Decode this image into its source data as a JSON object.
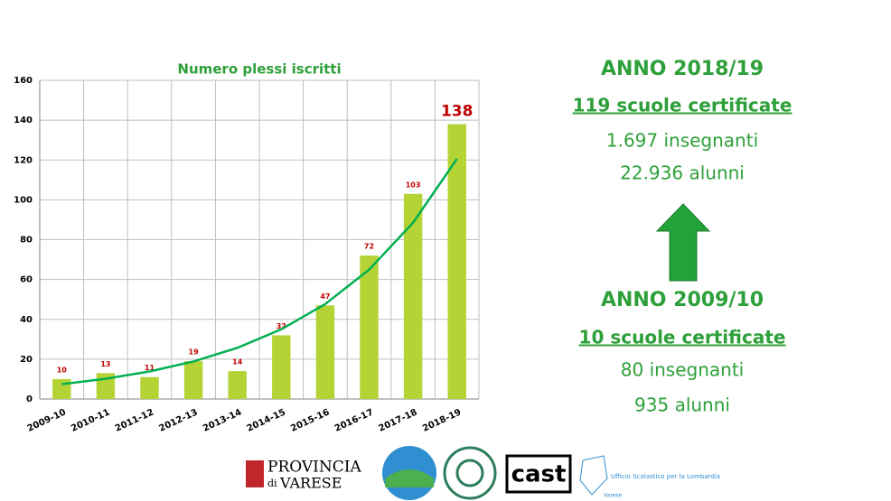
{
  "chart_data": {
    "type": "bar",
    "title": "Numero plessi iscritti",
    "categories": [
      "2009-10",
      "2010-11",
      "2011-12",
      "2012-13",
      "2013-14",
      "2014-15",
      "2015-16",
      "2016-17",
      "2017-18",
      "2018-19"
    ],
    "values": [
      10,
      13,
      11,
      19,
      14,
      32,
      47,
      72,
      103,
      138
    ],
    "color": "#b4d335",
    "label_color": "#c00000",
    "ylim": [
      0,
      160
    ],
    "yticks": [
      0,
      20,
      40,
      60,
      80,
      100,
      120,
      140,
      160
    ],
    "grid": true,
    "trendline": {
      "type": "exponential",
      "color": "#00b050"
    }
  },
  "summary": {
    "current": {
      "heading": "ANNO 2018/19",
      "schools": "119 scuole certificate",
      "teachers": "1.697 insegnanti",
      "students": "22.936 alunni"
    },
    "past": {
      "heading": "ANNO 2009/10",
      "schools": "10 scuole certificate",
      "teachers": "80 insegnanti",
      "students": "935 alunni"
    }
  },
  "logos": {
    "provincia": "PROVINCIA",
    "di": "di",
    "varese": "VARESE",
    "cast": "cast",
    "ufficio": "Ufficio Scolastico per la Lombardia",
    "ufficio_city": "Varese"
  }
}
